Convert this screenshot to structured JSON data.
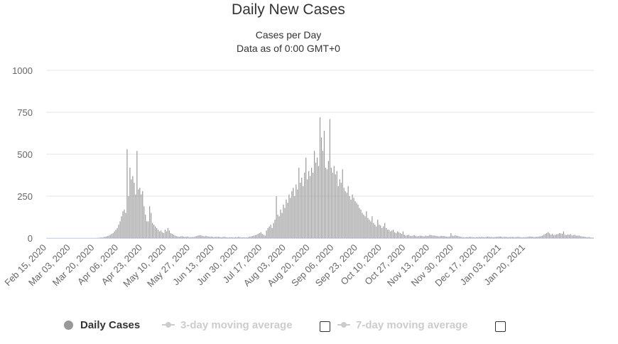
{
  "chart_data": {
    "type": "bar",
    "title": "Daily New Cases",
    "subtitle_1": "Cases per Day",
    "subtitle_2": "Data as of 0:00 GMT+0",
    "xlabel": "",
    "ylabel": "",
    "ylim": [
      0,
      1000
    ],
    "yticks": [
      "0",
      "250",
      "500",
      "750",
      "1000"
    ],
    "x_tick_labels": [
      "Feb 15, 2020",
      "Mar 03, 2020",
      "Mar 20, 2020",
      "Apr 06, 2020",
      "Apr 23, 2020",
      "May 10, 2020",
      "May 27, 2020",
      "Jun 13, 2020",
      "Jun 30, 2020",
      "Jul 17, 2020",
      "Aug 03, 2020",
      "Aug 20, 2020",
      "Sep 06, 2020",
      "Sep 23, 2020",
      "Oct 10, 2020",
      "Oct 27, 2020",
      "Nov 13, 2020",
      "Nov 30, 2020",
      "Dec 17, 2020",
      "Jan 03, 2021",
      "Jan 20, 2021"
    ],
    "series_name": "Daily Cases",
    "bar_color": "#999999",
    "start_date": "2020-02-15",
    "values": [
      0,
      0,
      0,
      0,
      0,
      0,
      0,
      0,
      0,
      0,
      0,
      0,
      0,
      0,
      0,
      0,
      0,
      0,
      0,
      0,
      0,
      0,
      0,
      0,
      0,
      0,
      0,
      0,
      0,
      0,
      0,
      0,
      0,
      0,
      0,
      1,
      1,
      2,
      3,
      4,
      5,
      7,
      9,
      12,
      15,
      20,
      25,
      30,
      40,
      50,
      60,
      80,
      100,
      130,
      160,
      170,
      150,
      530,
      250,
      420,
      350,
      370,
      330,
      260,
      520,
      290,
      300,
      260,
      280,
      190,
      140,
      100,
      100,
      190,
      150,
      90,
      80,
      70,
      60,
      50,
      40,
      45,
      35,
      30,
      50,
      40,
      60,
      45,
      30,
      25,
      20,
      15,
      12,
      10,
      8,
      10,
      12,
      9,
      7,
      8,
      10,
      6,
      5,
      7,
      6,
      8,
      12,
      14,
      16,
      18,
      15,
      12,
      10,
      14,
      11,
      9,
      8,
      10,
      7,
      6,
      8,
      7,
      9,
      6,
      5,
      7,
      8,
      6,
      5,
      4,
      6,
      5,
      5,
      4,
      6,
      5,
      8,
      6,
      5,
      4,
      5,
      3,
      4,
      6,
      8,
      10,
      12,
      15,
      18,
      20,
      25,
      30,
      35,
      25,
      20,
      15,
      45,
      60,
      70,
      80,
      60,
      90,
      110,
      250,
      140,
      130,
      170,
      150,
      200,
      180,
      230,
      210,
      260,
      240,
      280,
      300,
      250,
      320,
      290,
      420,
      330,
      360,
      310,
      390,
      480,
      350,
      400,
      370,
      420,
      390,
      520,
      450,
      480,
      430,
      720,
      600,
      520,
      640,
      420,
      410,
      460,
      710,
      420,
      390,
      430,
      380,
      400,
      310,
      350,
      330,
      410,
      300,
      280,
      270,
      310,
      250,
      230,
      260,
      240,
      220,
      210,
      200,
      180,
      170,
      150,
      140,
      130,
      160,
      120,
      110,
      100,
      130,
      90,
      80,
      70,
      110,
      80,
      75,
      60,
      70,
      90,
      60,
      50,
      50,
      40,
      45,
      50,
      35,
      30,
      40,
      35,
      30,
      25,
      40,
      20,
      15,
      18,
      20,
      14,
      12,
      15,
      18,
      14,
      10,
      12,
      15,
      14,
      12,
      10,
      15,
      12,
      14,
      20,
      18,
      15,
      16,
      14,
      12,
      11,
      10,
      14,
      12,
      13,
      10,
      9,
      8,
      10,
      30,
      15,
      12,
      18,
      14,
      12,
      10,
      8,
      6,
      5,
      4,
      6,
      5,
      8,
      7,
      6,
      5,
      4,
      6,
      5,
      7,
      6,
      8,
      6,
      5,
      7,
      9,
      8,
      6,
      7,
      5,
      6,
      8,
      7,
      9,
      10,
      8,
      6,
      7,
      8,
      6,
      5,
      7,
      6,
      8,
      5,
      6,
      7,
      8,
      6,
      5,
      4,
      6,
      5,
      7,
      8,
      10,
      9,
      8,
      6,
      7,
      8,
      9,
      10,
      12,
      15,
      20,
      25,
      30,
      35,
      28,
      20,
      25,
      18,
      20,
      22,
      24,
      30,
      28,
      26,
      40,
      20,
      18,
      22,
      20,
      24,
      16,
      18,
      20,
      15,
      14,
      16,
      12,
      10,
      9,
      8,
      6,
      5,
      7,
      4,
      3,
      3
    ]
  },
  "legend": {
    "daily_cases": "Daily Cases",
    "ma3": "3-day moving average",
    "ma7": "7-day moving average"
  },
  "colors": {
    "text": "#333333",
    "grid": "#e6e6e6",
    "axis_text": "#666666",
    "legend_disabled": "#cccccc"
  }
}
